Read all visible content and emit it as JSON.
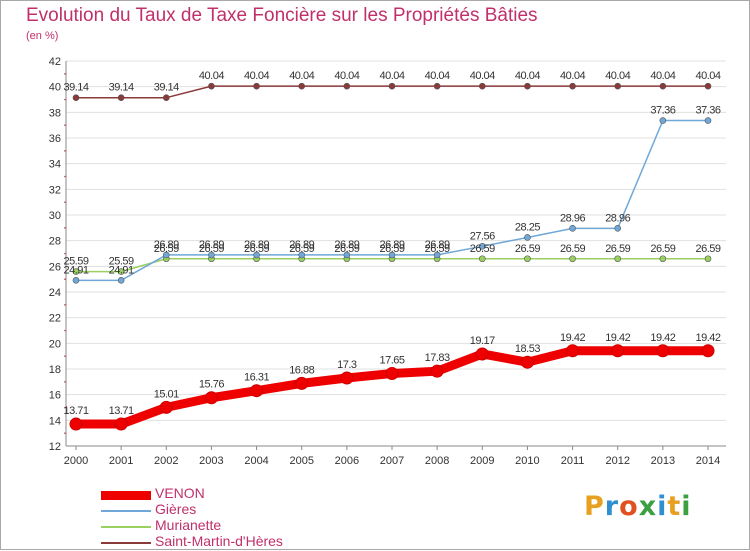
{
  "title": "Evolution du Taux de Taxe Foncière sur les Propriétés Bâties",
  "subtitle": "(en %)",
  "brand": {
    "letters": [
      "P",
      "r",
      "o",
      "x",
      "i",
      "t",
      "i"
    ],
    "colors": [
      "#e8a020",
      "#2f8fd0",
      "#e05020",
      "#3aa040",
      "#2f8fd0",
      "#e8a020",
      "#3aa040"
    ]
  },
  "chart_data": {
    "type": "line",
    "title": "Evolution du Taux de Taxe Foncière sur les Propriétés Bâties",
    "ylabel": "(en %)",
    "ylim": [
      12,
      42
    ],
    "yticks": [
      "12",
      "14",
      "16",
      "18",
      "20",
      "22",
      "24",
      "26",
      "28",
      "30",
      "32",
      "34",
      "36",
      "38",
      "40",
      "42"
    ],
    "x": [
      "2000",
      "2001",
      "2002",
      "2003",
      "2004",
      "2005",
      "2006",
      "2007",
      "2008",
      "2009",
      "2010",
      "2011",
      "2012",
      "2013",
      "2014"
    ],
    "series": [
      {
        "name": "VENON",
        "color": "#ee0000",
        "values": [
          13.71,
          13.71,
          15.01,
          15.76,
          16.31,
          16.88,
          17.3,
          17.65,
          17.83,
          19.17,
          18.53,
          19.42,
          19.42,
          19.42,
          19.42
        ],
        "labels": [
          "13.71",
          "13.71",
          "15.01",
          "15.76",
          "16.31",
          "16.88",
          "17.3",
          "17.65",
          "17.83",
          "19.17",
          "18.53",
          "19.42",
          "19.42",
          "19.42",
          "19.42"
        ]
      },
      {
        "name": "Gières",
        "color": "#6fa8d8",
        "values": [
          24.91,
          24.91,
          26.89,
          26.89,
          26.89,
          26.89,
          26.89,
          26.89,
          26.89,
          27.56,
          28.25,
          28.96,
          28.96,
          37.36,
          37.36
        ],
        "labels": [
          "24.91",
          "24.91",
          "26.89",
          "26.89",
          "26.89",
          "26.89",
          "26.89",
          "26.89",
          "26.89",
          "27.56",
          "28.25",
          "28.96",
          "28.96",
          "37.36",
          "37.36"
        ]
      },
      {
        "name": "Murianette",
        "color": "#9ad060",
        "values": [
          25.59,
          25.59,
          26.59,
          26.59,
          26.59,
          26.59,
          26.59,
          26.59,
          26.59,
          26.59,
          26.59,
          26.59,
          26.59,
          26.59,
          26.59
        ],
        "labels": [
          "25.59",
          "25.59",
          "26.59",
          "26.59",
          "26.59",
          "26.59",
          "26.59",
          "26.59",
          "26.59",
          "26.59",
          "26.59",
          "26.59",
          "26.59",
          "26.59",
          "26.59"
        ]
      },
      {
        "name": "Saint-Martin-d'Hères",
        "color": "#8b3a3a",
        "values": [
          39.14,
          39.14,
          39.14,
          40.04,
          40.04,
          40.04,
          40.04,
          40.04,
          40.04,
          40.04,
          40.04,
          40.04,
          40.04,
          40.04,
          40.04
        ],
        "labels": [
          "39.14",
          "39.14",
          "39.14",
          "40.04",
          "40.04",
          "40.04",
          "40.04",
          "40.04",
          "40.04",
          "40.04",
          "40.04",
          "40.04",
          "40.04",
          "40.04",
          "40.04"
        ]
      }
    ]
  }
}
